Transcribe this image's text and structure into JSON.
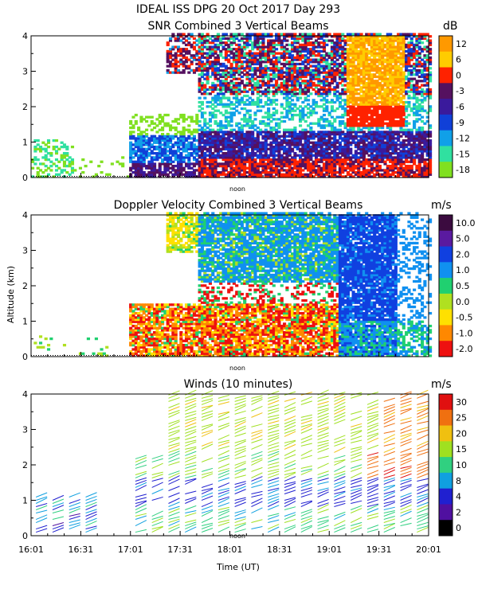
{
  "header": {
    "title": "IDEAL ISS DPG  20 Oct 2017 Day 293"
  },
  "chart_data": [
    {
      "type": "heatmap",
      "title": "SNR Combined 3 Vertical Beams",
      "ylabel": "",
      "ylim": [
        0,
        4
      ],
      "yticks": [
        "0",
        "1",
        "2",
        "3",
        "4"
      ],
      "noon_label": "noon",
      "colorbar": {
        "unit": "dB",
        "labels": [
          "12",
          "6",
          "0",
          "-3",
          "-6",
          "-9",
          "-12",
          "-15",
          "-18"
        ],
        "colors": [
          "#ff9900",
          "#ffcc00",
          "#ff2200",
          "#55115f",
          "#3a1a9c",
          "#1040d8",
          "#10a0e8",
          "#30e0a0",
          "#80e020"
        ]
      }
    },
    {
      "type": "heatmap",
      "title": "Doppler Velocity Combined 3 Vertical Beams",
      "ylabel": "Altitude (km)",
      "ylim": [
        0,
        4
      ],
      "yticks": [
        "0",
        "1",
        "2",
        "3",
        "4"
      ],
      "noon_label": "noon",
      "colorbar": {
        "unit": "m/s",
        "labels": [
          "10.0",
          "5.0",
          "2.0",
          "1.0",
          "0.5",
          "0.0",
          "-0.5",
          "-1.0",
          "-2.0"
        ],
        "colors": [
          "#3b0b3f",
          "#5a1aa0",
          "#1040e0",
          "#1090f0",
          "#20d070",
          "#b0e020",
          "#ffe000",
          "#ff8800",
          "#ee1010"
        ]
      }
    },
    {
      "type": "scatter",
      "title": "Winds (10 minutes)",
      "ylabel": "",
      "ylim": [
        0,
        4
      ],
      "yticks": [
        "0",
        "1",
        "2",
        "3",
        "4"
      ],
      "noon_label": "noon",
      "xlabel": "Time (UT)",
      "xticks": [
        "16:01",
        "16:31",
        "17:01",
        "17:31",
        "18:01",
        "18:31",
        "19:01",
        "19:31",
        "20:01"
      ],
      "colorbar": {
        "unit": "m/s",
        "labels": [
          "30",
          "25",
          "20",
          "15",
          "10",
          "8",
          "4",
          "2",
          "0"
        ],
        "colors": [
          "#e01010",
          "#f07010",
          "#f0c010",
          "#a0e020",
          "#30d080",
          "#10a0e0",
          "#2020d0",
          "#5010a0",
          "#000000"
        ]
      }
    }
  ]
}
